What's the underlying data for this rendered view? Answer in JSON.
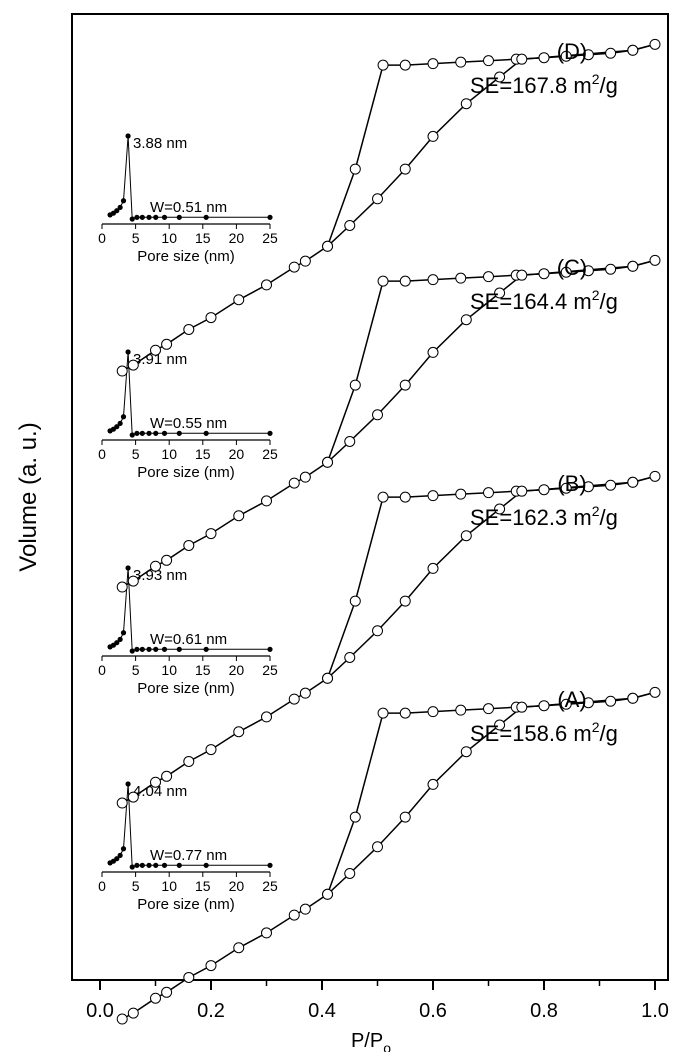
{
  "chart_data": {
    "type": "line",
    "title": "",
    "xlabel": "P/P",
    "xlabel_sub": "o",
    "ylabel": "Volume (a. u.)",
    "xlim": [
      -0.05,
      1.03
    ],
    "x_ticks": [
      "0.0",
      "0.2",
      "0.4",
      "0.6",
      "0.8",
      "1.0"
    ],
    "y_ticks": [],
    "grid": false,
    "legend": "none",
    "colors": {
      "line": "#000000",
      "marker_fill": "#ffffff",
      "inset_marker": "#000000"
    },
    "series": [
      {
        "label": "(A)",
        "se_prefix": "SE=158.6 m",
        "se_sup": "2",
        "se_suffix": "/g",
        "adsorption": [
          [
            0.04,
            1
          ],
          [
            0.06,
            3
          ],
          [
            0.1,
            8
          ],
          [
            0.12,
            10
          ],
          [
            0.16,
            15
          ],
          [
            0.2,
            19
          ],
          [
            0.25,
            25
          ],
          [
            0.3,
            30
          ],
          [
            0.35,
            36
          ],
          [
            0.37,
            38
          ],
          [
            0.41,
            43
          ],
          [
            0.46,
            69
          ],
          [
            0.51,
            104
          ],
          [
            0.55,
            104
          ],
          [
            0.6,
            104.5
          ],
          [
            0.65,
            105
          ],
          [
            0.7,
            105.5
          ],
          [
            0.75,
            106
          ],
          [
            0.8,
            106.5
          ],
          [
            0.84,
            107
          ],
          [
            0.88,
            107.5
          ],
          [
            0.92,
            108
          ],
          [
            0.96,
            109
          ],
          [
            1.0,
            111
          ]
        ],
        "desorption": [
          [
            1.0,
            111
          ],
          [
            0.96,
            109
          ],
          [
            0.76,
            106
          ],
          [
            0.72,
            100
          ],
          [
            0.66,
            91
          ],
          [
            0.6,
            80
          ],
          [
            0.55,
            69
          ],
          [
            0.5,
            59
          ],
          [
            0.45,
            50
          ],
          [
            0.41,
            43
          ]
        ],
        "inset": {
          "peak_label": "4.04 nm",
          "width_label": "W=0.77 nm",
          "xlabel": "Pore size (nm)",
          "x_ticks": [
            "0",
            "5",
            "10",
            "15",
            "20",
            "25"
          ],
          "points": [
            [
              1.2,
              0.05
            ],
            [
              1.7,
              0.07
            ],
            [
              2.2,
              0.1
            ],
            [
              2.7,
              0.14
            ],
            [
              3.2,
              0.22
            ],
            [
              3.88,
              1.0
            ],
            [
              4.5,
              0.0
            ],
            [
              5.2,
              0.02
            ],
            [
              6.0,
              0.02
            ],
            [
              7.0,
              0.02
            ],
            [
              8.0,
              0.02
            ],
            [
              9.3,
              0.02
            ],
            [
              11.5,
              0.02
            ],
            [
              15.5,
              0.02
            ],
            [
              25,
              0.02
            ]
          ]
        }
      },
      {
        "label": "(B)",
        "se_prefix": "SE=162.3 m",
        "se_sup": "2",
        "se_suffix": "/g",
        "adsorption": [
          [
            0.04,
            1
          ],
          [
            0.06,
            3
          ],
          [
            0.1,
            8
          ],
          [
            0.12,
            10
          ],
          [
            0.16,
            15
          ],
          [
            0.2,
            19
          ],
          [
            0.25,
            25
          ],
          [
            0.3,
            30
          ],
          [
            0.35,
            36
          ],
          [
            0.37,
            38
          ],
          [
            0.41,
            43
          ],
          [
            0.46,
            69
          ],
          [
            0.51,
            104
          ],
          [
            0.55,
            104
          ],
          [
            0.6,
            104.5
          ],
          [
            0.65,
            105
          ],
          [
            0.7,
            105.5
          ],
          [
            0.75,
            106
          ],
          [
            0.8,
            106.5
          ],
          [
            0.84,
            107
          ],
          [
            0.88,
            107.5
          ],
          [
            0.92,
            108
          ],
          [
            0.96,
            109
          ],
          [
            1.0,
            111
          ]
        ],
        "desorption": [
          [
            1.0,
            111
          ],
          [
            0.96,
            109
          ],
          [
            0.76,
            106
          ],
          [
            0.72,
            100
          ],
          [
            0.66,
            91
          ],
          [
            0.6,
            80
          ],
          [
            0.55,
            69
          ],
          [
            0.5,
            59
          ],
          [
            0.45,
            50
          ],
          [
            0.41,
            43
          ]
        ],
        "inset": {
          "peak_label": "3.93 nm",
          "width_label": "W=0.61 nm",
          "xlabel": "Pore size (nm)",
          "x_ticks": [
            "0",
            "5",
            "10",
            "15",
            "20",
            "25"
          ],
          "points": [
            [
              1.2,
              0.05
            ],
            [
              1.7,
              0.07
            ],
            [
              2.2,
              0.1
            ],
            [
              2.7,
              0.14
            ],
            [
              3.2,
              0.22
            ],
            [
              3.88,
              1.0
            ],
            [
              4.5,
              0.0
            ],
            [
              5.2,
              0.02
            ],
            [
              6.0,
              0.02
            ],
            [
              7.0,
              0.02
            ],
            [
              8.0,
              0.02
            ],
            [
              9.3,
              0.02
            ],
            [
              11.5,
              0.02
            ],
            [
              15.5,
              0.02
            ],
            [
              25,
              0.02
            ]
          ]
        }
      },
      {
        "label": "(C)",
        "se_prefix": "SE=164.4 m",
        "se_sup": "2",
        "se_suffix": "/g",
        "adsorption": [
          [
            0.04,
            1
          ],
          [
            0.06,
            3
          ],
          [
            0.1,
            8
          ],
          [
            0.12,
            10
          ],
          [
            0.16,
            15
          ],
          [
            0.2,
            19
          ],
          [
            0.25,
            25
          ],
          [
            0.3,
            30
          ],
          [
            0.35,
            36
          ],
          [
            0.37,
            38
          ],
          [
            0.41,
            43
          ],
          [
            0.46,
            69
          ],
          [
            0.51,
            104
          ],
          [
            0.55,
            104
          ],
          [
            0.6,
            104.5
          ],
          [
            0.65,
            105
          ],
          [
            0.7,
            105.5
          ],
          [
            0.75,
            106
          ],
          [
            0.8,
            106.5
          ],
          [
            0.84,
            107
          ],
          [
            0.88,
            107.5
          ],
          [
            0.92,
            108
          ],
          [
            0.96,
            109
          ],
          [
            1.0,
            111
          ]
        ],
        "desorption": [
          [
            1.0,
            111
          ],
          [
            0.96,
            109
          ],
          [
            0.76,
            106
          ],
          [
            0.72,
            100
          ],
          [
            0.66,
            91
          ],
          [
            0.6,
            80
          ],
          [
            0.55,
            69
          ],
          [
            0.5,
            59
          ],
          [
            0.45,
            50
          ],
          [
            0.41,
            43
          ]
        ],
        "inset": {
          "peak_label": "3.91 nm",
          "width_label": "W=0.55 nm",
          "xlabel": "Pore size (nm)",
          "x_ticks": [
            "0",
            "5",
            "10",
            "15",
            "20",
            "25"
          ],
          "points": [
            [
              1.2,
              0.05
            ],
            [
              1.7,
              0.07
            ],
            [
              2.2,
              0.1
            ],
            [
              2.7,
              0.14
            ],
            [
              3.2,
              0.22
            ],
            [
              3.88,
              1.0
            ],
            [
              4.5,
              0.0
            ],
            [
              5.2,
              0.02
            ],
            [
              6.0,
              0.02
            ],
            [
              7.0,
              0.02
            ],
            [
              8.0,
              0.02
            ],
            [
              9.3,
              0.02
            ],
            [
              11.5,
              0.02
            ],
            [
              15.5,
              0.02
            ],
            [
              25,
              0.02
            ]
          ]
        }
      },
      {
        "label": "(D)",
        "se_prefix": "SE=167.8 m",
        "se_sup": "2",
        "se_suffix": "/g",
        "adsorption": [
          [
            0.04,
            1
          ],
          [
            0.06,
            3
          ],
          [
            0.1,
            8
          ],
          [
            0.12,
            10
          ],
          [
            0.16,
            15
          ],
          [
            0.2,
            19
          ],
          [
            0.25,
            25
          ],
          [
            0.3,
            30
          ],
          [
            0.35,
            36
          ],
          [
            0.37,
            38
          ],
          [
            0.41,
            43
          ],
          [
            0.46,
            69
          ],
          [
            0.51,
            104
          ],
          [
            0.55,
            104
          ],
          [
            0.6,
            104.5
          ],
          [
            0.65,
            105
          ],
          [
            0.7,
            105.5
          ],
          [
            0.75,
            106
          ],
          [
            0.8,
            106.5
          ],
          [
            0.84,
            107
          ],
          [
            0.88,
            107.5
          ],
          [
            0.92,
            108
          ],
          [
            0.96,
            109
          ],
          [
            1.0,
            111
          ]
        ],
        "desorption": [
          [
            1.0,
            111
          ],
          [
            0.96,
            109
          ],
          [
            0.76,
            106
          ],
          [
            0.72,
            100
          ],
          [
            0.66,
            91
          ],
          [
            0.6,
            80
          ],
          [
            0.55,
            69
          ],
          [
            0.5,
            59
          ],
          [
            0.45,
            50
          ],
          [
            0.41,
            43
          ]
        ],
        "inset": {
          "peak_label": "3.88 nm",
          "width_label": "W=0.51 nm",
          "xlabel": "Pore size (nm)",
          "x_ticks": [
            "0",
            "5",
            "10",
            "15",
            "20",
            "25"
          ],
          "points": [
            [
              1.2,
              0.05
            ],
            [
              1.7,
              0.07
            ],
            [
              2.2,
              0.1
            ],
            [
              2.7,
              0.14
            ],
            [
              3.2,
              0.22
            ],
            [
              3.88,
              1.0
            ],
            [
              4.5,
              0.0
            ],
            [
              5.2,
              0.02
            ],
            [
              6.0,
              0.02
            ],
            [
              7.0,
              0.02
            ],
            [
              8.0,
              0.02
            ],
            [
              9.3,
              0.02
            ],
            [
              11.5,
              0.02
            ],
            [
              15.5,
              0.02
            ],
            [
              25,
              0.02
            ]
          ]
        }
      }
    ]
  }
}
